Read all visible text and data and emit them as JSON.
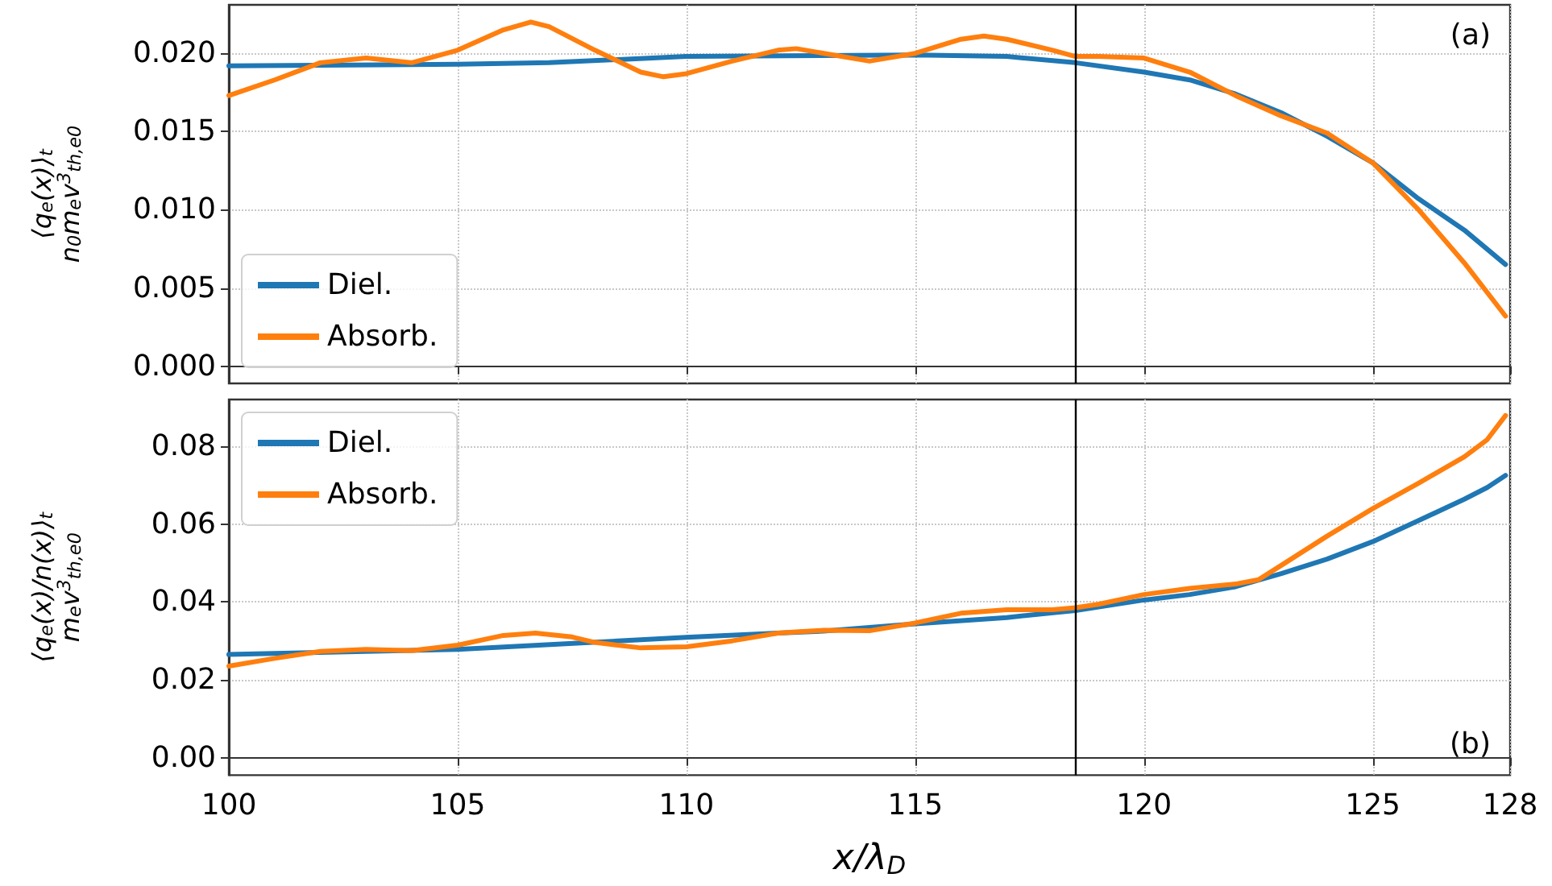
{
  "chart_data": [
    {
      "type": "line",
      "ylabel": "⟨q$_{e}$(x)⟩$_{t}$\nn$_{0}$m$_{e}$v$^{3}$$_{th,e0}$",
      "annotations": [
        "(a)"
      ],
      "xlim": [
        100,
        128
      ],
      "xticks": [
        100,
        105,
        110,
        115,
        120,
        125,
        128
      ],
      "ylim": [
        -0.0011,
        0.0231
      ],
      "yticks": [
        {
          "value": 0,
          "label": "0.000"
        },
        0.005,
        {
          "value": 0.01,
          "label": "0.010"
        },
        0.015,
        {
          "value": 0.02,
          "label": "0.020"
        }
      ],
      "tick_labels": "y",
      "grid": true,
      "legend": "bottom left",
      "line_style": "solid",
      "ref_lines": [
        {
          "axis": "x",
          "value": 118.5,
          "color": "#000000"
        }
      ],
      "series": [
        {
          "name": "Diel.",
          "color": "#1f77b4",
          "x": [
            100,
            105,
            107,
            110,
            115,
            117,
            118.5,
            120,
            121,
            122,
            123,
            124,
            125,
            126,
            127,
            127.9
          ],
          "values": [
            0.0192,
            0.0193,
            0.0194,
            0.0198,
            0.0199,
            0.0198,
            0.0194,
            0.0188,
            0.0183,
            0.0174,
            0.0162,
            0.0147,
            0.013,
            0.0107,
            0.0087,
            0.0065
          ]
        },
        {
          "name": "Absorb.",
          "color": "#ff7f0e",
          "x": [
            100,
            101,
            102,
            103,
            104,
            105,
            106,
            106.6,
            107,
            108,
            109,
            109.5,
            110,
            111,
            112,
            112.4,
            113,
            114,
            115,
            116,
            116.5,
            117,
            118,
            118.5,
            119,
            120,
            121,
            122,
            123,
            124,
            125,
            126,
            127,
            127.9
          ],
          "values": [
            0.0173,
            0.0183,
            0.0194,
            0.0197,
            0.0194,
            0.0202,
            0.0215,
            0.022,
            0.0217,
            0.0202,
            0.0188,
            0.0185,
            0.0187,
            0.0195,
            0.0202,
            0.0203,
            0.02,
            0.0195,
            0.02,
            0.0209,
            0.0211,
            0.0209,
            0.0202,
            0.0198,
            0.0198,
            0.0197,
            0.0188,
            0.0173,
            0.016,
            0.0149,
            0.013,
            0.01,
            0.0066,
            0.0032
          ]
        }
      ]
    },
    {
      "type": "line",
      "ylabel": "⟨q$_{e}$(x)/n(x)⟩$_{t}$\nm$_{e}$v$^{3}$$_{th,e0}$",
      "xlabel": "x/λ$_{D}$",
      "annotations": [
        "(b)"
      ],
      "xlim": [
        100,
        128
      ],
      "xticks": [
        100,
        105,
        110,
        115,
        120,
        125,
        128
      ],
      "ylim": [
        -0.0045,
        0.092
      ],
      "yticks": [
        {
          "value": 0,
          "label": "0.00"
        },
        {
          "value": 0.02,
          "label": "0.02"
        },
        {
          "value": 0.04,
          "label": "0.04"
        },
        {
          "value": 0.06,
          "label": "0.06"
        },
        {
          "value": 0.08,
          "label": "0.08"
        }
      ],
      "grid": true,
      "legend": "top left",
      "line_style": "solid",
      "ref_lines": [
        {
          "axis": "x",
          "value": 118.5,
          "color": "#000000"
        }
      ],
      "series": [
        {
          "name": "Diel.",
          "color": "#1f77b4",
          "x": [
            100,
            105,
            110,
            112,
            113,
            115,
            117,
            118.5,
            120,
            121,
            122,
            123,
            124,
            125,
            126,
            127,
            127.5,
            127.9
          ],
          "values": [
            0.0265,
            0.0278,
            0.0309,
            0.032,
            0.0325,
            0.0344,
            0.036,
            0.0378,
            0.0405,
            0.0419,
            0.0439,
            0.0473,
            0.051,
            0.0555,
            0.0609,
            0.0664,
            0.0694,
            0.0725
          ]
        },
        {
          "name": "Absorb.",
          "color": "#ff7f0e",
          "x": [
            100,
            101,
            102,
            103,
            104,
            105,
            106,
            106.7,
            107.5,
            108,
            109,
            110,
            111,
            112,
            112.4,
            113,
            114,
            115,
            116,
            117,
            118,
            118.5,
            119,
            120,
            121,
            122,
            122.5,
            123,
            124,
            125,
            126,
            127,
            127.5,
            127.9
          ],
          "values": [
            0.0235,
            0.0255,
            0.0273,
            0.0278,
            0.0275,
            0.0289,
            0.0314,
            0.032,
            0.031,
            0.0296,
            0.0282,
            0.0285,
            0.03,
            0.032,
            0.0323,
            0.0327,
            0.0326,
            0.0346,
            0.0371,
            0.038,
            0.038,
            0.0385,
            0.0394,
            0.0419,
            0.0435,
            0.0446,
            0.0457,
            0.0494,
            0.0569,
            0.064,
            0.0705,
            0.0773,
            0.0817,
            0.0879
          ]
        }
      ]
    }
  ]
}
